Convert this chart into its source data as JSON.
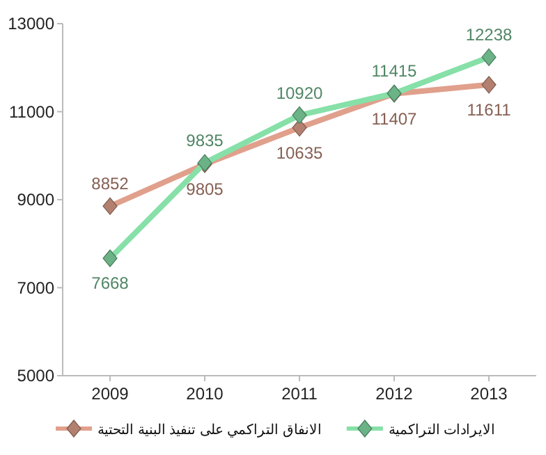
{
  "chart_data": {
    "type": "line",
    "categories": [
      "2009",
      "2010",
      "2011",
      "2012",
      "2013"
    ],
    "series": [
      {
        "name": "الانفاق التراكمي على تنفيذ البنية التحتية",
        "color": "#e0a08c",
        "values": [
          8852,
          9805,
          10635,
          11407,
          11611
        ]
      },
      {
        "name": "الايرادات التراكمية",
        "color": "#86e0a8",
        "values": [
          7668,
          9835,
          10920,
          11415,
          12238
        ]
      }
    ],
    "ylim": [
      5000,
      13000
    ],
    "yticks": [
      5000,
      7000,
      9000,
      11000,
      13000
    ],
    "grid": false,
    "legend": "bottom",
    "marker": "diamond",
    "line_style": "solid",
    "data_labels": true
  }
}
